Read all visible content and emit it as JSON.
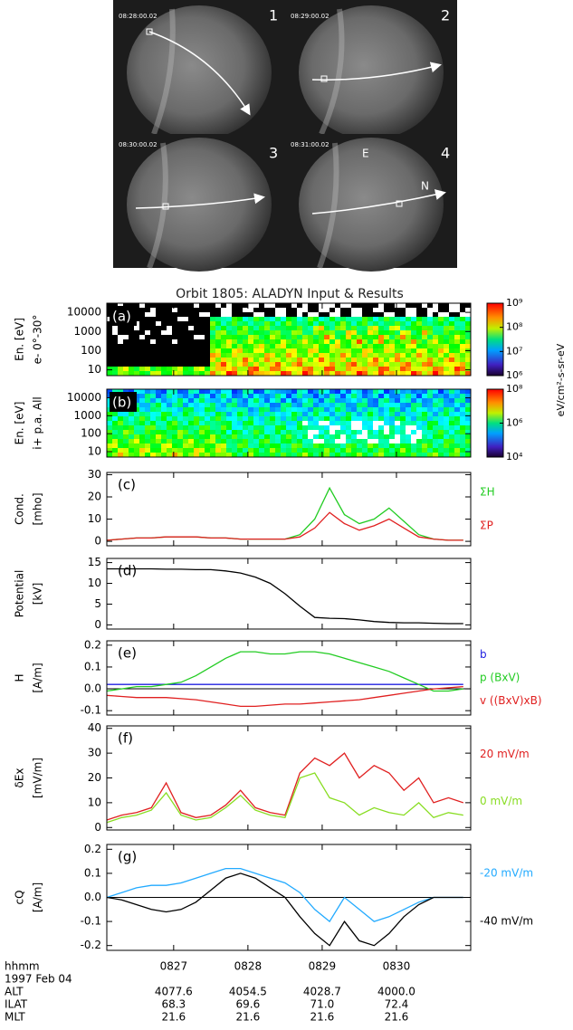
{
  "images": {
    "frames": [
      {
        "time": "08:28:00.02",
        "number": "1"
      },
      {
        "time": "08:29:00.02",
        "number": "2"
      },
      {
        "time": "08:30:00.02",
        "number": "3"
      },
      {
        "time": "08:31:00.02",
        "number": "4"
      }
    ],
    "direction_labels": [
      "E",
      "N"
    ]
  },
  "figure_title": "Orbit 1805: ALADYN Input & Results",
  "chart_data": [
    {
      "type": "spectrogram",
      "panel_label": "(a)",
      "ylabel": [
        "En. [eV]",
        "e- 0°-30°"
      ],
      "xlim": [
        26.1,
        31.0
      ],
      "xticks": [
        27,
        28,
        29,
        30
      ],
      "ylim": [
        5,
        30000
      ],
      "log_y": true,
      "yticks": [
        10,
        100,
        1000,
        10000
      ],
      "clim": [
        1000000,
        1000000000
      ],
      "colorbar_ticks": [
        {
          "value": 1000000000,
          "label": "10⁹"
        },
        {
          "value": 100000000,
          "label": "10⁸"
        },
        {
          "value": 10000000,
          "label": "10⁷"
        },
        {
          "value": 1000000,
          "label": "10⁶"
        }
      ]
    },
    {
      "type": "spectrogram",
      "panel_label": "(b)",
      "ylabel": [
        "En. [eV]",
        "i+ p.a. All"
      ],
      "xlim": [
        26.1,
        31.0
      ],
      "xticks": [
        27,
        28,
        29,
        30
      ],
      "ylim": [
        5,
        30000
      ],
      "log_y": true,
      "yticks": [
        10,
        100,
        1000,
        10000
      ],
      "clim": [
        10000,
        100000000
      ],
      "colorbar_ticks": [
        {
          "value": 100000000,
          "label": "10⁸"
        },
        {
          "value": 1000000,
          "label": "10⁶"
        },
        {
          "value": 10000,
          "label": "10⁴"
        }
      ],
      "colorbar_label": "eV/cm²-s-sr-eV"
    },
    {
      "type": "line",
      "panel_label": "(c)",
      "ylabel": [
        "Cond.",
        "[mho]"
      ],
      "xlim": [
        26.1,
        31.0
      ],
      "xticks": [
        27,
        28,
        29,
        30
      ],
      "ylim": [
        -2,
        31
      ],
      "yticks": [
        0,
        10,
        20,
        30
      ],
      "x": [
        26.1,
        26.3,
        26.5,
        26.7,
        26.9,
        27.1,
        27.3,
        27.5,
        27.7,
        27.9,
        28.1,
        28.3,
        28.5,
        28.7,
        28.9,
        29.1,
        29.3,
        29.5,
        29.7,
        29.9,
        30.1,
        30.3,
        30.5,
        30.7,
        30.9
      ],
      "series": [
        {
          "name": "ΣH",
          "color": "#22cc22",
          "values": [
            0.5,
            1,
            1.5,
            1.5,
            2,
            2,
            2,
            1.5,
            1.5,
            1,
            1,
            1,
            1,
            3,
            10,
            24,
            12,
            8,
            10,
            15,
            9,
            3,
            1,
            0.5,
            0.5
          ]
        },
        {
          "name": "ΣP",
          "color": "#e02020",
          "values": [
            0.5,
            1,
            1.5,
            1.5,
            2,
            2,
            2,
            1.5,
            1.5,
            1,
            1,
            1,
            1,
            2,
            6,
            13,
            8,
            5,
            7,
            10,
            6,
            2,
            1,
            0.5,
            0.5
          ]
        }
      ]
    },
    {
      "type": "line",
      "panel_label": "(d)",
      "ylabel": [
        "Potential",
        "[kV]"
      ],
      "xlim": [
        26.1,
        31.0
      ],
      "xticks": [
        27,
        28,
        29,
        30
      ],
      "ylim": [
        -1,
        16
      ],
      "yticks": [
        0,
        5,
        10,
        15
      ],
      "x": [
        26.1,
        26.3,
        26.5,
        26.7,
        26.9,
        27.1,
        27.3,
        27.5,
        27.7,
        27.9,
        28.1,
        28.3,
        28.5,
        28.7,
        28.9,
        29.1,
        29.3,
        29.5,
        29.7,
        29.9,
        30.1,
        30.3,
        30.5,
        30.7,
        30.9
      ],
      "series": [
        {
          "color": "#000000",
          "values": [
            13.5,
            13.5,
            13.5,
            13.5,
            13.4,
            13.4,
            13.3,
            13.3,
            13,
            12.5,
            11.5,
            10,
            7.5,
            4.5,
            1.8,
            1.6,
            1.5,
            1.2,
            0.8,
            0.6,
            0.5,
            0.5,
            0.4,
            0.3,
            0.3
          ]
        }
      ]
    },
    {
      "type": "line",
      "panel_label": "(e)",
      "ylabel": [
        "H",
        "[A/m]"
      ],
      "xlim": [
        26.1,
        31.0
      ],
      "xticks": [
        27,
        28,
        29,
        30
      ],
      "ylim": [
        -0.12,
        0.22
      ],
      "yticks": [
        -0.1,
        {
          "value": 0,
          "label": "0.0"
        },
        0.1,
        0.2
      ],
      "zero_line": true,
      "x": [
        26.1,
        26.3,
        26.5,
        26.7,
        26.9,
        27.1,
        27.3,
        27.5,
        27.7,
        27.9,
        28.1,
        28.3,
        28.5,
        28.7,
        28.9,
        29.1,
        29.3,
        29.5,
        29.7,
        29.9,
        30.1,
        30.3,
        30.5,
        30.7,
        30.9
      ],
      "series": [
        {
          "name": "b",
          "color": "#2020e0",
          "values": [
            0.02,
            0.02,
            0.02,
            0.02,
            0.02,
            0.02,
            0.02,
            0.02,
            0.02,
            0.02,
            0.02,
            0.02,
            0.02,
            0.02,
            0.02,
            0.02,
            0.02,
            0.02,
            0.02,
            0.02,
            0.02,
            0.02,
            0.02,
            0.02,
            0.02
          ]
        },
        {
          "name": "p (BxV)",
          "color": "#22cc22",
          "values": [
            -0.01,
            0,
            0.01,
            0.01,
            0.02,
            0.03,
            0.06,
            0.1,
            0.14,
            0.17,
            0.17,
            0.16,
            0.16,
            0.17,
            0.17,
            0.16,
            0.14,
            0.12,
            0.1,
            0.08,
            0.05,
            0.02,
            -0.01,
            -0.01,
            0
          ]
        },
        {
          "name": "v ((BxV)xB)",
          "color": "#e02020",
          "values": [
            -0.03,
            -0.035,
            -0.04,
            -0.04,
            -0.04,
            -0.045,
            -0.05,
            -0.06,
            -0.07,
            -0.08,
            -0.08,
            -0.075,
            -0.07,
            -0.07,
            -0.065,
            -0.06,
            -0.055,
            -0.05,
            -0.04,
            -0.03,
            -0.02,
            -0.01,
            0,
            0.005,
            0.01
          ]
        }
      ]
    },
    {
      "type": "line",
      "panel_label": "(f)",
      "ylabel": [
        "δEx",
        "[mV/m]"
      ],
      "xlim": [
        26.1,
        31.0
      ],
      "xticks": [
        27,
        28,
        29,
        30
      ],
      "ylim": [
        -1,
        41
      ],
      "yticks": [
        0,
        10,
        20,
        30,
        40
      ],
      "x": [
        26.1,
        26.3,
        26.5,
        26.7,
        26.9,
        27.1,
        27.3,
        27.5,
        27.7,
        27.9,
        28.1,
        28.3,
        28.5,
        28.7,
        28.9,
        29.1,
        29.3,
        29.5,
        29.7,
        29.9,
        30.1,
        30.3,
        30.5,
        30.7,
        30.9
      ],
      "series": [
        {
          "name": "20 mV/m",
          "color": "#e02020",
          "values": [
            3,
            5,
            6,
            8,
            18,
            6,
            4,
            5,
            9,
            15,
            8,
            6,
            5,
            22,
            28,
            25,
            30,
            20,
            25,
            22,
            15,
            20,
            10,
            12,
            10
          ]
        },
        {
          "name": "0 mV/m",
          "color": "#88dd22",
          "values": [
            2,
            4,
            5,
            7,
            14,
            5,
            3,
            4,
            8,
            13,
            7,
            5,
            4,
            20,
            22,
            12,
            10,
            5,
            8,
            6,
            5,
            10,
            4,
            6,
            5
          ]
        }
      ]
    },
    {
      "type": "line",
      "panel_label": "(g)",
      "ylabel": [
        "cQ",
        "[A/m]"
      ],
      "xlim": [
        26.1,
        31.0
      ],
      "xticks": [
        {
          "value": 27,
          "label": "0827"
        },
        {
          "value": 28,
          "label": "0828"
        },
        {
          "value": 29,
          "label": "0829"
        },
        {
          "value": 30,
          "label": "0830"
        }
      ],
      "ylim": [
        -0.22,
        0.22
      ],
      "yticks": [
        -0.2,
        -0.1,
        {
          "value": 0,
          "label": "0.0"
        },
        0.1,
        0.2
      ],
      "zero_line": true,
      "x": [
        26.1,
        26.3,
        26.5,
        26.7,
        26.9,
        27.1,
        27.3,
        27.5,
        27.7,
        27.9,
        28.1,
        28.3,
        28.5,
        28.7,
        28.9,
        29.1,
        29.3,
        29.5,
        29.7,
        29.9,
        30.1,
        30.3,
        30.5,
        30.7,
        30.9
      ],
      "series": [
        {
          "name": "-20 mV/m",
          "color": "#22aaff",
          "values": [
            0,
            0.02,
            0.04,
            0.05,
            0.05,
            0.06,
            0.08,
            0.1,
            0.12,
            0.12,
            0.1,
            0.08,
            0.06,
            0.02,
            -0.05,
            -0.1,
            0.0,
            -0.05,
            -0.1,
            -0.08,
            -0.05,
            -0.02,
            0,
            0,
            0
          ]
        },
        {
          "name": "-40 mV/m",
          "color": "#000000",
          "values": [
            0,
            -0.01,
            -0.03,
            -0.05,
            -0.06,
            -0.05,
            -0.02,
            0.03,
            0.08,
            0.1,
            0.08,
            0.04,
            0.0,
            -0.08,
            -0.15,
            -0.2,
            -0.1,
            -0.18,
            -0.2,
            -0.15,
            -0.08,
            -0.03,
            0,
            0,
            0
          ]
        }
      ]
    }
  ],
  "footer": {
    "time_label": "hhmm",
    "date": "1997 Feb 04",
    "rows": [
      {
        "label": "ALT",
        "values": [
          "4077.6",
          "4054.5",
          "4028.7",
          "4000.0"
        ]
      },
      {
        "label": "ILAT",
        "values": [
          "68.3",
          "69.6",
          "71.0",
          "72.4"
        ]
      },
      {
        "label": "MLT",
        "values": [
          "21.6",
          "21.6",
          "21.6",
          "21.6"
        ]
      }
    ]
  }
}
